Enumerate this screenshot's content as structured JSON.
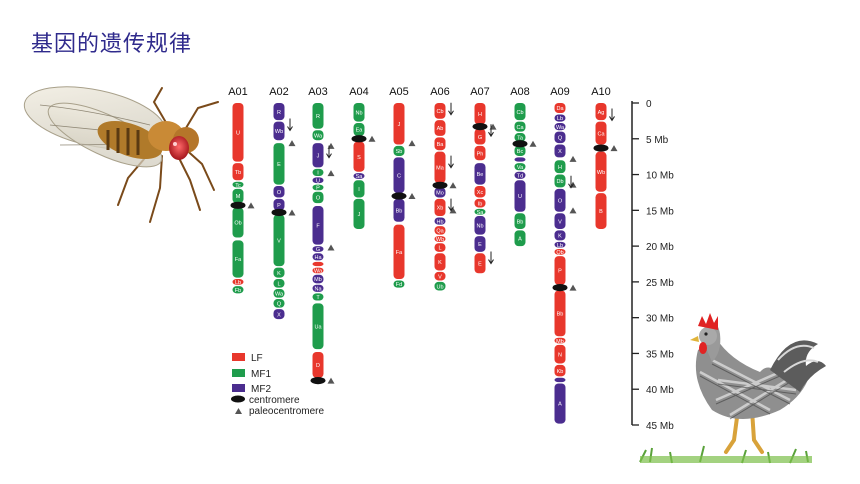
{
  "title": "基因的遗传规律",
  "colors": {
    "LF": "#e8372c",
    "MF1": "#1f9c4c",
    "MF2": "#4b2d8f",
    "title": "#2f2a8c",
    "label_text": "#ffffff"
  },
  "legend": [
    {
      "key": "LF",
      "label": "LF"
    },
    {
      "key": "MF1",
      "label": "MF1"
    },
    {
      "key": "MF2",
      "label": "MF2"
    },
    {
      "key": "centromere",
      "label": "centromere"
    },
    {
      "key": "paleocentromere",
      "label": "paleocentromere"
    }
  ],
  "scale": {
    "ticks": [
      "0",
      "5 Mb",
      "10 Mb",
      "15 Mb",
      "20 Mb",
      "25 Mb",
      "30 Mb",
      "35 Mb",
      "40 Mb",
      "45 Mb"
    ],
    "max_mb": 45
  },
  "chromosomes": [
    {
      "name": "A01",
      "centromere": 14.3,
      "segments": [
        {
          "start": 0,
          "end": 8.2,
          "color": "LF",
          "label": "U"
        },
        {
          "start": 8.4,
          "end": 10.8,
          "color": "LF",
          "label": "Tb"
        },
        {
          "start": 11.0,
          "end": 11.8,
          "color": "MF1",
          "label": "Tc"
        },
        {
          "start": 12.0,
          "end": 14.0,
          "color": "MF1",
          "label": "M"
        },
        {
          "start": 14.6,
          "end": 18.8,
          "color": "MF1",
          "label": "Ob"
        },
        {
          "start": 19.2,
          "end": 24.4,
          "color": "MF1",
          "label": "Fa"
        },
        {
          "start": 24.6,
          "end": 25.4,
          "color": "LF",
          "label": "Lb"
        },
        {
          "start": 25.6,
          "end": 26.6,
          "color": "MF1",
          "label": "Fb"
        }
      ],
      "paleo": [
        14.3
      ]
    },
    {
      "name": "A02",
      "centromere": 15.3,
      "segments": [
        {
          "start": 0,
          "end": 2.4,
          "color": "MF2",
          "label": "R"
        },
        {
          "start": 2.6,
          "end": 5.2,
          "color": "MF2",
          "label": "Wb"
        },
        {
          "start": 5.6,
          "end": 11.4,
          "color": "MF1",
          "label": "E"
        },
        {
          "start": 11.6,
          "end": 13.2,
          "color": "MF2",
          "label": "O"
        },
        {
          "start": 13.4,
          "end": 15.0,
          "color": "MF2",
          "label": "P"
        },
        {
          "start": 15.6,
          "end": 22.8,
          "color": "MF1",
          "label": "V"
        },
        {
          "start": 23.0,
          "end": 24.4,
          "color": "MF1",
          "label": "K"
        },
        {
          "start": 24.6,
          "end": 25.8,
          "color": "MF1",
          "label": "L"
        },
        {
          "start": 26.0,
          "end": 27.2,
          "color": "MF1",
          "label": "Wa"
        },
        {
          "start": 27.4,
          "end": 28.6,
          "color": "MF1",
          "label": "Q"
        },
        {
          "start": 28.8,
          "end": 30.2,
          "color": "MF2",
          "label": "X"
        }
      ],
      "arrows": [
        3.0
      ],
      "paleo": [
        5.6,
        15.3
      ]
    },
    {
      "name": "A03",
      "centromere": 38.8,
      "segments": [
        {
          "start": 0,
          "end": 3.6,
          "color": "MF1",
          "label": "R"
        },
        {
          "start": 3.8,
          "end": 5.2,
          "color": "MF1",
          "label": "Wa"
        },
        {
          "start": 5.6,
          "end": 9.0,
          "color": "MF2",
          "label": "J"
        },
        {
          "start": 9.2,
          "end": 10.2,
          "color": "MF1",
          "label": "I"
        },
        {
          "start": 10.4,
          "end": 11.2,
          "color": "MF2",
          "label": "U"
        },
        {
          "start": 11.4,
          "end": 12.2,
          "color": "MF1",
          "label": "P"
        },
        {
          "start": 12.4,
          "end": 14.0,
          "color": "MF1",
          "label": "O"
        },
        {
          "start": 14.4,
          "end": 19.8,
          "color": "MF2",
          "label": "F"
        },
        {
          "start": 20.0,
          "end": 20.8,
          "color": "MF2",
          "label": "G"
        },
        {
          "start": 21.0,
          "end": 22.0,
          "color": "MF2",
          "label": "Ha"
        },
        {
          "start": 22.2,
          "end": 22.8,
          "color": "LF",
          "label": "Ob"
        },
        {
          "start": 23.0,
          "end": 23.8,
          "color": "LF",
          "label": "Wa"
        },
        {
          "start": 24.0,
          "end": 25.2,
          "color": "MF2",
          "label": "Mb"
        },
        {
          "start": 25.4,
          "end": 26.4,
          "color": "MF2",
          "label": "Na"
        },
        {
          "start": 26.6,
          "end": 27.6,
          "color": "MF1",
          "label": "T"
        },
        {
          "start": 28.0,
          "end": 34.4,
          "color": "MF1",
          "label": "Ua"
        },
        {
          "start": 34.8,
          "end": 38.4,
          "color": "LF",
          "label": "D"
        }
      ],
      "arrows": [
        6.8
      ],
      "paleo": [
        6.0,
        9.8,
        20.2,
        38.8
      ]
    },
    {
      "name": "A04",
      "centromere": 5.0,
      "segments": [
        {
          "start": 0,
          "end": 2.6,
          "color": "MF1",
          "label": "Nb"
        },
        {
          "start": 2.8,
          "end": 4.6,
          "color": "MF1",
          "label": "Ea"
        },
        {
          "start": 5.4,
          "end": 9.6,
          "color": "LF",
          "label": "S"
        },
        {
          "start": 9.8,
          "end": 10.6,
          "color": "MF2",
          "label": "Sa"
        },
        {
          "start": 10.8,
          "end": 13.2,
          "color": "MF1",
          "label": "I"
        },
        {
          "start": 13.4,
          "end": 17.6,
          "color": "MF1",
          "label": "J"
        }
      ],
      "paleo": [
        5.0
      ]
    },
    {
      "name": "A05",
      "centromere": 13.0,
      "segments": [
        {
          "start": 0,
          "end": 5.8,
          "color": "LF",
          "label": "J"
        },
        {
          "start": 6.0,
          "end": 7.4,
          "color": "MF1",
          "label": "Sb"
        },
        {
          "start": 7.6,
          "end": 12.6,
          "color": "MF2",
          "label": "C"
        },
        {
          "start": 13.4,
          "end": 16.6,
          "color": "MF2",
          "label": "Bb"
        },
        {
          "start": 17.0,
          "end": 24.6,
          "color": "LF",
          "label": "Fa"
        },
        {
          "start": 24.8,
          "end": 25.8,
          "color": "MF1",
          "label": "Fd"
        }
      ],
      "paleo": [
        5.6,
        13.0
      ]
    },
    {
      "name": "A06",
      "centromere": 11.5,
      "segments": [
        {
          "start": 0,
          "end": 2.2,
          "color": "LF",
          "label": "Cb"
        },
        {
          "start": 2.4,
          "end": 4.6,
          "color": "LF",
          "label": "Ab"
        },
        {
          "start": 4.8,
          "end": 6.6,
          "color": "LF",
          "label": "Ba"
        },
        {
          "start": 6.8,
          "end": 11.2,
          "color": "LF",
          "label": "Ma"
        },
        {
          "start": 11.8,
          "end": 13.2,
          "color": "MF2",
          "label": "Mo"
        },
        {
          "start": 13.4,
          "end": 15.8,
          "color": "LF",
          "label": "Xb"
        },
        {
          "start": 16.0,
          "end": 17.0,
          "color": "MF2",
          "label": "Hb"
        },
        {
          "start": 17.2,
          "end": 18.4,
          "color": "LF",
          "label": "Qa"
        },
        {
          "start": 18.6,
          "end": 19.4,
          "color": "LF",
          "label": "Wb"
        },
        {
          "start": 19.6,
          "end": 20.8,
          "color": "LF",
          "label": "L"
        },
        {
          "start": 21.0,
          "end": 23.4,
          "color": "LF",
          "label": "K"
        },
        {
          "start": 23.6,
          "end": 24.8,
          "color": "LF",
          "label": "V"
        },
        {
          "start": 25.0,
          "end": 26.2,
          "color": "MF1",
          "label": "Ub"
        }
      ],
      "arrows": [
        0.8,
        8.2,
        14.2
      ],
      "paleo": [
        11.5,
        15.0
      ]
    },
    {
      "name": "A07",
      "centromere": 3.3,
      "segments": [
        {
          "start": 0,
          "end": 3.0,
          "color": "LF",
          "label": "H"
        },
        {
          "start": 3.6,
          "end": 5.8,
          "color": "LF",
          "label": "G"
        },
        {
          "start": 6.0,
          "end": 8.0,
          "color": "LF",
          "label": "Ph"
        },
        {
          "start": 8.4,
          "end": 11.4,
          "color": "MF2",
          "label": "Be"
        },
        {
          "start": 11.6,
          "end": 13.2,
          "color": "LF",
          "label": "Xc"
        },
        {
          "start": 13.4,
          "end": 14.6,
          "color": "LF",
          "label": "Ib"
        },
        {
          "start": 14.8,
          "end": 15.6,
          "color": "MF1",
          "label": "Sa"
        },
        {
          "start": 15.8,
          "end": 18.4,
          "color": "MF2",
          "label": "Nb"
        },
        {
          "start": 18.6,
          "end": 20.8,
          "color": "MF2",
          "label": "E"
        },
        {
          "start": 21.0,
          "end": 23.8,
          "color": "LF",
          "label": "E"
        }
      ],
      "arrows": [
        3.8,
        21.6
      ],
      "paleo": [
        3.3
      ]
    },
    {
      "name": "A08",
      "centromere": 5.7,
      "segments": [
        {
          "start": 0,
          "end": 2.4,
          "color": "MF1",
          "label": "Cb"
        },
        {
          "start": 2.6,
          "end": 4.0,
          "color": "MF1",
          "label": "Ca"
        },
        {
          "start": 4.2,
          "end": 5.4,
          "color": "MF1",
          "label": "Ta"
        },
        {
          "start": 6.0,
          "end": 7.4,
          "color": "MF1",
          "label": "Bc"
        },
        {
          "start": 7.6,
          "end": 8.2,
          "color": "MF2",
          "label": "Sb"
        },
        {
          "start": 8.4,
          "end": 9.4,
          "color": "MF1",
          "label": "Va"
        },
        {
          "start": 9.6,
          "end": 10.6,
          "color": "MF2",
          "label": "Td"
        },
        {
          "start": 10.8,
          "end": 15.2,
          "color": "MF2",
          "label": "U"
        },
        {
          "start": 15.4,
          "end": 17.6,
          "color": "MF1",
          "label": "Bb"
        },
        {
          "start": 17.8,
          "end": 20.0,
          "color": "MF1",
          "label": "A"
        }
      ],
      "paleo": [
        5.7
      ]
    },
    {
      "name": "A09",
      "centromere": 25.8,
      "segments": [
        {
          "start": 0,
          "end": 1.4,
          "color": "LF",
          "label": "Da"
        },
        {
          "start": 1.6,
          "end": 2.6,
          "color": "MF2",
          "label": "Lb"
        },
        {
          "start": 2.8,
          "end": 3.8,
          "color": "MF2",
          "label": "Wa"
        },
        {
          "start": 4.0,
          "end": 5.6,
          "color": "MF2",
          "label": "Q"
        },
        {
          "start": 5.8,
          "end": 7.6,
          "color": "MF2",
          "label": "X"
        },
        {
          "start": 8.0,
          "end": 9.8,
          "color": "MF1",
          "label": "H"
        },
        {
          "start": 10.0,
          "end": 11.8,
          "color": "MF1",
          "label": "Db"
        },
        {
          "start": 12.0,
          "end": 15.2,
          "color": "MF2",
          "label": "O"
        },
        {
          "start": 15.4,
          "end": 17.6,
          "color": "MF2",
          "label": "V"
        },
        {
          "start": 17.8,
          "end": 19.2,
          "color": "MF2",
          "label": "K"
        },
        {
          "start": 19.4,
          "end": 20.2,
          "color": "MF2",
          "label": "Lb"
        },
        {
          "start": 20.4,
          "end": 21.2,
          "color": "LF",
          "label": "Qb"
        },
        {
          "start": 21.4,
          "end": 25.4,
          "color": "LF",
          "label": "P"
        },
        {
          "start": 26.2,
          "end": 32.6,
          "color": "LF",
          "label": "Bb"
        },
        {
          "start": 32.8,
          "end": 33.6,
          "color": "LF",
          "label": "Mb"
        },
        {
          "start": 33.8,
          "end": 36.4,
          "color": "LF",
          "label": "N"
        },
        {
          "start": 36.6,
          "end": 38.2,
          "color": "LF",
          "label": "Kb"
        },
        {
          "start": 38.4,
          "end": 39.0,
          "color": "MF2",
          "label": "Hb"
        },
        {
          "start": 39.2,
          "end": 44.8,
          "color": "MF2",
          "label": "A"
        }
      ],
      "arrows": [
        11.0
      ],
      "paleo": [
        7.8,
        11.4,
        15.0,
        25.8
      ]
    },
    {
      "name": "A10",
      "centromere": 6.3,
      "segments": [
        {
          "start": 0,
          "end": 2.4,
          "color": "LF",
          "label": "Ag"
        },
        {
          "start": 2.6,
          "end": 5.8,
          "color": "LF",
          "label": "Ca"
        },
        {
          "start": 6.8,
          "end": 12.4,
          "color": "LF",
          "label": "Wb"
        },
        {
          "start": 12.6,
          "end": 17.6,
          "color": "LF",
          "label": "B"
        }
      ],
      "arrows": [
        1.6
      ],
      "paleo": [
        6.3
      ]
    }
  ]
}
